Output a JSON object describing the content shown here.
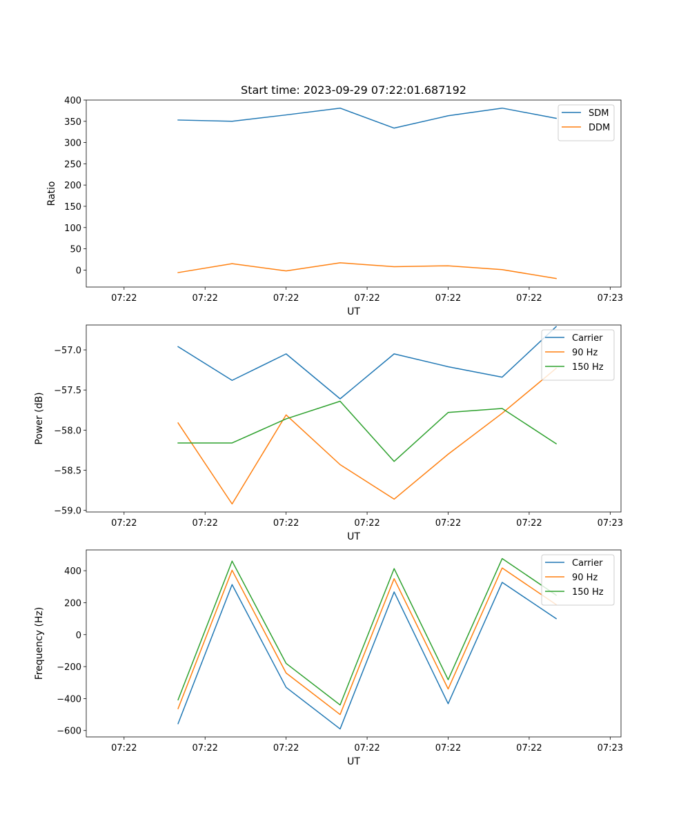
{
  "chart_data": [
    {
      "type": "line",
      "title": "Start time: 2023-09-29 07:22:01.687192",
      "xlabel": "UT",
      "ylabel": "Ratio",
      "x": [
        1,
        2,
        3,
        4,
        5,
        6,
        7,
        8
      ],
      "xlim": [
        -0.7,
        9.2
      ],
      "x_ticks": [
        0,
        1.5,
        3,
        4.5,
        6,
        7.5,
        9
      ],
      "x_tick_labels": [
        "07:22",
        "07:22",
        "07:22",
        "07:22",
        "07:22",
        "07:22",
        "07:23"
      ],
      "ylim": [
        -40,
        400
      ],
      "y_ticks": [
        0,
        50,
        100,
        150,
        200,
        250,
        300,
        350,
        400
      ],
      "legend_position": "top-right",
      "series": [
        {
          "name": "SDM",
          "color": "#1f77b4",
          "values": [
            353,
            350,
            365,
            381,
            334,
            363,
            381,
            357
          ]
        },
        {
          "name": "DDM",
          "color": "#ff7f0e",
          "values": [
            -6,
            15,
            -2,
            17,
            8,
            10,
            1,
            -20
          ]
        }
      ]
    },
    {
      "type": "line",
      "title": "",
      "xlabel": "UT",
      "ylabel": "Power (dB)",
      "x": [
        1,
        2,
        3,
        4,
        5,
        6,
        7,
        8
      ],
      "xlim": [
        -0.7,
        9.2
      ],
      "x_ticks": [
        0,
        1.5,
        3,
        4.5,
        6,
        7.5,
        9
      ],
      "x_tick_labels": [
        "07:22",
        "07:22",
        "07:22",
        "07:22",
        "07:22",
        "07:22",
        "07:23"
      ],
      "ylim": [
        -59.02,
        -56.69
      ],
      "y_ticks": [
        -59.0,
        -58.5,
        -58.0,
        -57.5,
        -57.0
      ],
      "y_tick_labels": [
        "−59.0",
        "−58.5",
        "−58.0",
        "−57.5",
        "−57.0"
      ],
      "legend_position": "top-right",
      "series": [
        {
          "name": "Carrier",
          "color": "#1f77b4",
          "values": [
            -56.96,
            -57.38,
            -57.05,
            -57.61,
            -57.05,
            -57.21,
            -57.34,
            -56.71
          ]
        },
        {
          "name": "90 Hz",
          "color": "#ff7f0e",
          "values": [
            -57.91,
            -58.92,
            -57.81,
            -58.43,
            -58.86,
            -58.3,
            -57.79,
            -57.23
          ]
        },
        {
          "name": "150 Hz",
          "color": "#2ca02c",
          "values": [
            -58.16,
            -58.16,
            -57.86,
            -57.64,
            -58.39,
            -57.78,
            -57.73,
            -58.17
          ]
        }
      ]
    },
    {
      "type": "line",
      "title": "",
      "xlabel": "UT",
      "ylabel": "Frequency (Hz)",
      "x": [
        1,
        2,
        3,
        4,
        5,
        6,
        7,
        8
      ],
      "xlim": [
        -0.7,
        9.2
      ],
      "x_ticks": [
        0,
        1.5,
        3,
        4.5,
        6,
        7.5,
        9
      ],
      "x_tick_labels": [
        "07:22",
        "07:22",
        "07:22",
        "07:22",
        "07:22",
        "07:22",
        "07:23"
      ],
      "ylim": [
        -640,
        530
      ],
      "y_ticks": [
        -600,
        -400,
        -200,
        0,
        200,
        400
      ],
      "y_tick_labels": [
        "−600",
        "−400",
        "−200",
        "0",
        "200",
        "400"
      ],
      "legend_position": "top-right",
      "series": [
        {
          "name": "Carrier",
          "color": "#1f77b4",
          "values": [
            -557,
            313,
            -330,
            -590,
            267,
            -432,
            327,
            100
          ]
        },
        {
          "name": "90 Hz",
          "color": "#ff7f0e",
          "values": [
            -463,
            403,
            -240,
            -500,
            350,
            -340,
            417,
            188
          ]
        },
        {
          "name": "150 Hz",
          "color": "#2ca02c",
          "values": [
            -408,
            460,
            -180,
            -440,
            413,
            -282,
            476,
            247
          ]
        }
      ]
    }
  ]
}
